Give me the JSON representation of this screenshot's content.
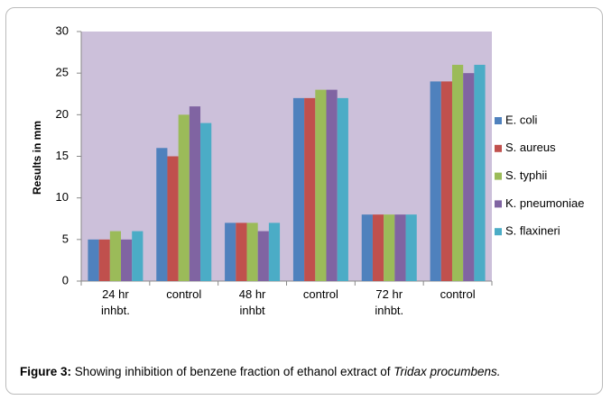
{
  "chart_data": {
    "type": "bar",
    "y_label": "Results in mm",
    "categories": [
      "24 hr inhbt.",
      "control",
      "48 hr inhbt",
      "control",
      "72 hr inhbt.",
      "control"
    ],
    "series": [
      {
        "name": "E. coli",
        "color": "#4f81bd",
        "values": [
          5,
          16,
          7,
          22,
          8,
          24
        ]
      },
      {
        "name": "S. aureus",
        "color": "#c0504d",
        "values": [
          5,
          15,
          7,
          22,
          8,
          24
        ]
      },
      {
        "name": "S. typhii",
        "color": "#9bbb59",
        "values": [
          6,
          20,
          7,
          23,
          8,
          26
        ]
      },
      {
        "name": "K. pneumoniae",
        "color": "#8064a2",
        "values": [
          5,
          21,
          6,
          23,
          8,
          25
        ]
      },
      {
        "name": "S. flaxineri",
        "color": "#4bacc6",
        "values": [
          6,
          19,
          7,
          22,
          8,
          26
        ]
      }
    ],
    "ylim": [
      0,
      30
    ],
    "yticks": [
      0,
      5,
      10,
      15,
      20,
      25,
      30
    ],
    "plot_background": "#ccc0da",
    "legend": "right",
    "caption": {
      "label": "Figure 3:",
      "text": "Showing inhibition of benzene fraction of ethanol extract of ",
      "species": "Tridax procumbens."
    }
  }
}
